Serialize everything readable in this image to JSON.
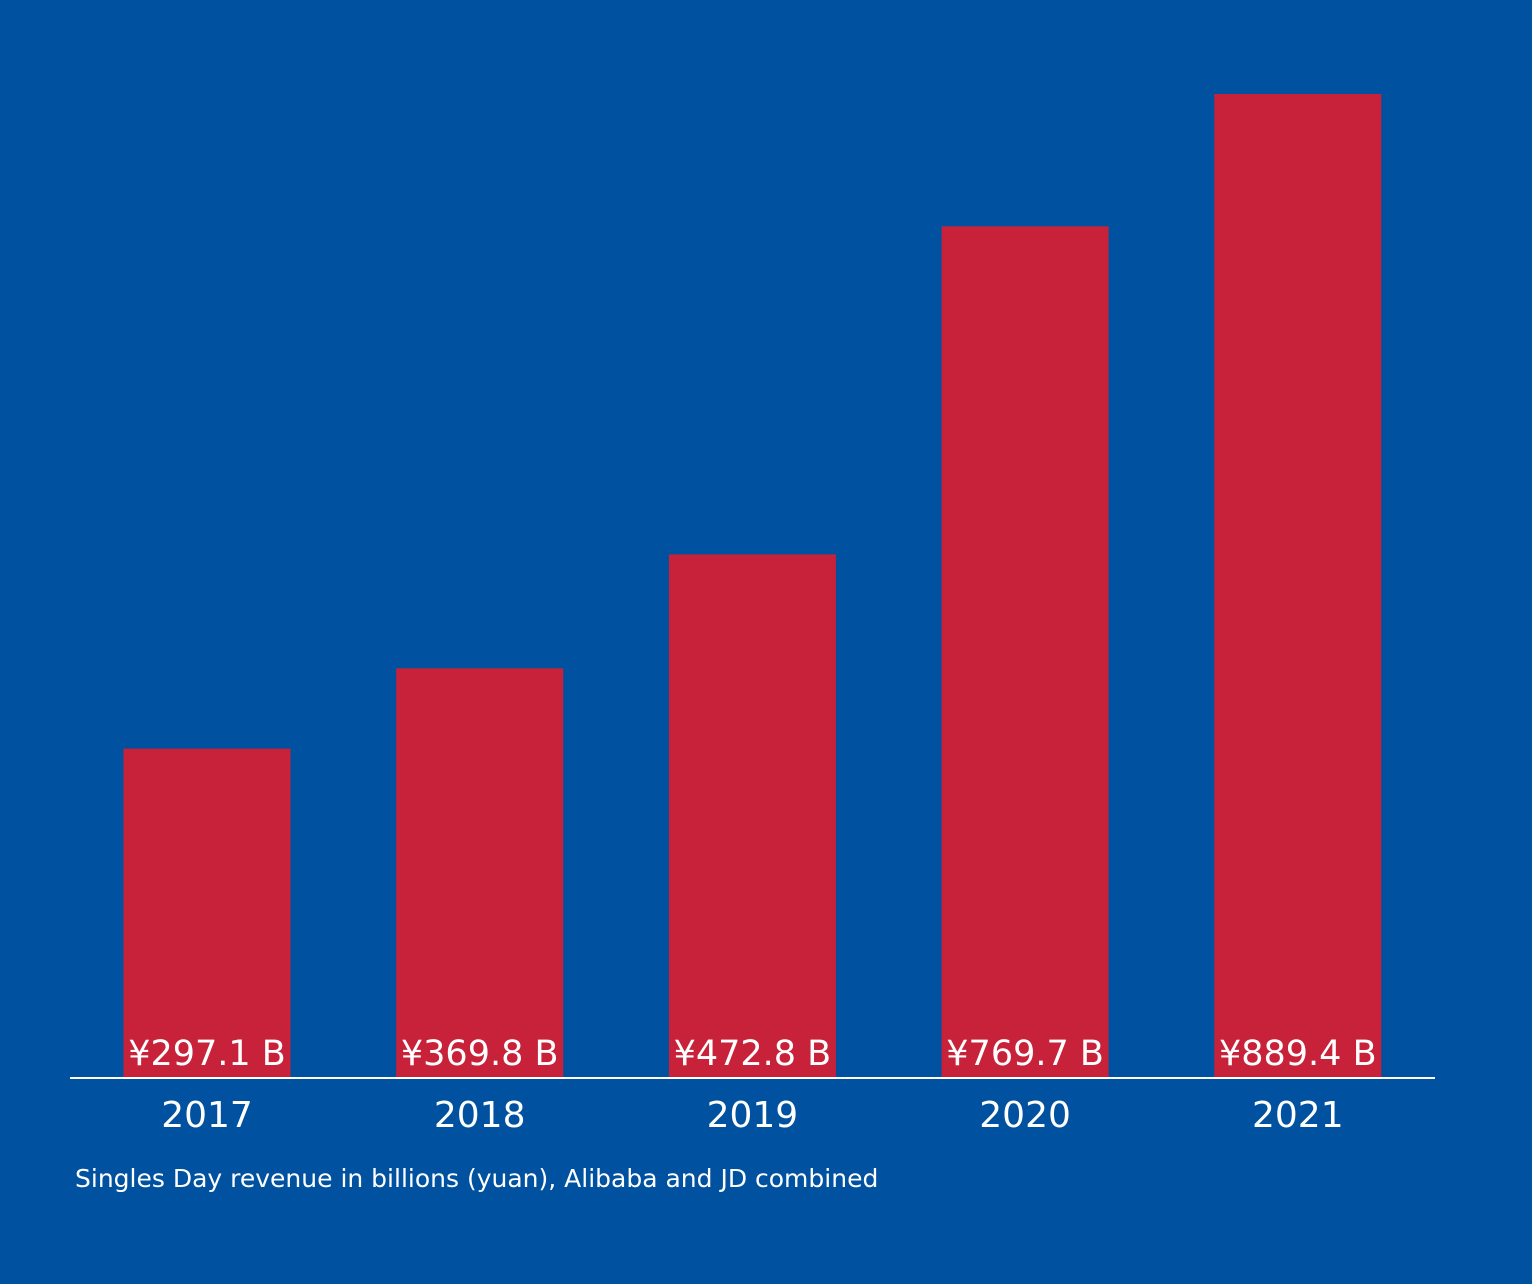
{
  "chart_data": {
    "type": "bar",
    "categories": [
      "2017",
      "2018",
      "2019",
      "2020",
      "2021"
    ],
    "values": [
      297.1,
      369.8,
      472.8,
      769.7,
      889.4
    ],
    "value_labels": [
      "¥297.1 B",
      "¥369.8 B",
      "¥472.8 B",
      "¥769.7 B",
      "¥889.4 B"
    ],
    "caption": "Singles Day revenue in billions (yuan), Alibaba and JD combined",
    "title": "",
    "xlabel": "",
    "ylabel": "",
    "ylim": [
      0,
      900
    ],
    "grid": false,
    "legend": "none",
    "colors": {
      "background": "#0052a0",
      "bar": "#c8223a",
      "text": "#ffffff",
      "axis": "#ffffff"
    }
  }
}
